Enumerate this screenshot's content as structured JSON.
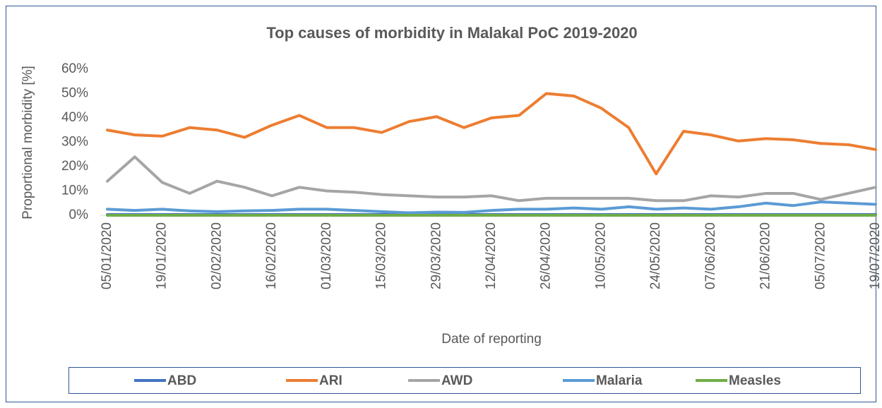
{
  "chart_data": {
    "type": "line",
    "title": "Top causes of morbidity in Malakal PoC 2019-2020",
    "x_label": "Date of reporting",
    "y_label": "Proportional morbidity [%]",
    "categories": [
      "05/01/2020",
      null,
      "19/01/2020",
      null,
      "02/02/2020",
      null,
      "16/02/2020",
      null,
      "01/03/2020",
      null,
      "15/03/2020",
      null,
      "29/03/2020",
      null,
      "12/04/2020",
      null,
      "26/04/2020",
      null,
      "10/05/2020",
      null,
      "24/05/2020",
      null,
      "07/06/2020",
      null,
      "21/06/2020",
      null,
      "05/07/2020",
      null,
      "19/07/2020"
    ],
    "series": [
      {
        "name": "ABD",
        "color": "#4472c4",
        "values": [
          0.3,
          0.3,
          0.3,
          0.3,
          0.3,
          0.3,
          0.3,
          0.3,
          0.3,
          0.3,
          0.3,
          0.3,
          0.3,
          0.3,
          0.3,
          0.3,
          0.3,
          0.3,
          0.3,
          0.3,
          0.3,
          0.3,
          0.3,
          0.3,
          0.3,
          0.3,
          0.3,
          0.3,
          0.3
        ]
      },
      {
        "name": "ARI",
        "color": "#ed7d31",
        "values": [
          35,
          33,
          32.5,
          36,
          35,
          32,
          37,
          41,
          36,
          36,
          34,
          38.5,
          40.5,
          36,
          40,
          41,
          50,
          49,
          44,
          36,
          17,
          34.5,
          33,
          30.5,
          31.5,
          31,
          29.5,
          29,
          27
        ]
      },
      {
        "name": "AWD",
        "color": "#a5a5a5",
        "values": [
          14,
          24,
          13.5,
          9,
          14,
          11.5,
          8,
          11.5,
          10,
          9.5,
          8.5,
          8,
          7.5,
          7.5,
          8,
          6,
          7,
          7,
          7,
          7,
          6,
          6,
          8,
          7.5,
          9,
          9,
          6.5,
          9,
          11.5
        ]
      },
      {
        "name": "Malaria",
        "color": "#5b9bd5",
        "values": [
          2.5,
          2,
          2.5,
          1.8,
          1.5,
          1.8,
          2,
          2.5,
          2.5,
          2,
          1.5,
          1,
          1.3,
          1.2,
          2,
          2.5,
          2.5,
          3,
          2.5,
          3.5,
          2.5,
          3,
          2.5,
          3.5,
          5,
          4,
          5.5,
          5,
          4.5
        ]
      },
      {
        "name": "Measles",
        "color": "#70ad47",
        "values": [
          0,
          0,
          0,
          0,
          0,
          0,
          0,
          0,
          0,
          0,
          0,
          0,
          0,
          0,
          0,
          0,
          0,
          0,
          0,
          0,
          0,
          0,
          0,
          0,
          0,
          0,
          0,
          0,
          0
        ]
      }
    ],
    "ylim": [
      0,
      60
    ],
    "yticks": [
      {
        "value": 0,
        "label": "0%"
      },
      {
        "value": 10,
        "label": "10%"
      },
      {
        "value": 20,
        "label": "20%"
      },
      {
        "value": 30,
        "label": "30%"
      },
      {
        "value": 40,
        "label": "40%"
      },
      {
        "value": 50,
        "label": "50%"
      },
      {
        "value": 60,
        "label": "60%"
      }
    ],
    "legend": "bottom"
  }
}
